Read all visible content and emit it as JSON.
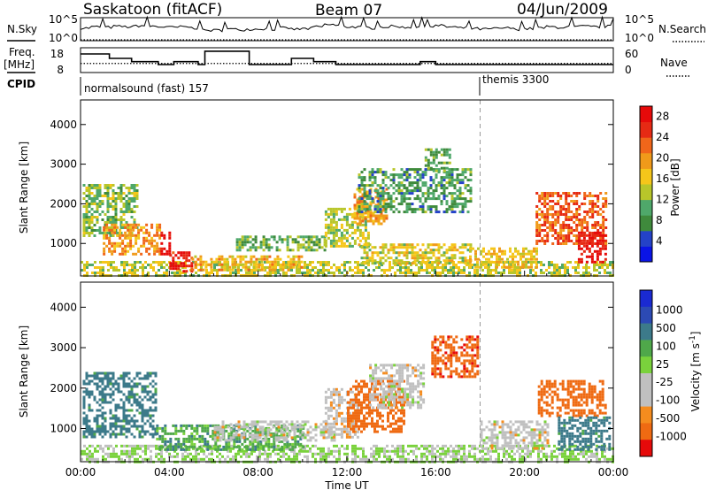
{
  "header": {
    "station": "Saskatoon (fitACF)",
    "beam": "Beam 07",
    "date": "04/Jun/2009"
  },
  "top_labels": {
    "nsky": "N.Sky",
    "freq_line1": "Freq.",
    "freq_line2": "[MHz]",
    "cpid": "CPID",
    "nsearch": "N.Search",
    "nave": "Nave",
    "nsky_ticks": [
      "10^5",
      "10^0"
    ],
    "nsearch_ticks": [
      "10^5",
      "10^0"
    ],
    "freq_ticks": [
      "18",
      "8"
    ],
    "nave_ticks": [
      "60",
      "0"
    ]
  },
  "cpid_labels": [
    {
      "start_hour": 0.0,
      "text": "normalsound (fast) 157"
    },
    {
      "start_hour": 18.0,
      "text": "themis 3300"
    }
  ],
  "colors": {
    "power": [
      "#0a14e6",
      "#2442c8",
      "#3f8a3c",
      "#4fa86a",
      "#b8c62a",
      "#f5c61a",
      "#f09a1a",
      "#f0661a",
      "#e62a14",
      "#e60a0a"
    ],
    "velocity_neg": [
      "#e60a0a",
      "#ef6a12",
      "#f58c1e"
    ],
    "velocity_zero": "#c0c0c0",
    "velocity_pos": [
      "#7ad23c",
      "#4fa84a",
      "#3c7a8a",
      "#2c4ab4",
      "#1a2ad2"
    ]
  },
  "chart_data": [
    {
      "type": "line",
      "name": "nsky_nsearch",
      "x_unit": "hour UT",
      "xlim": [
        0,
        24
      ],
      "series": [
        {
          "name": "N.Sky",
          "x": [
            0,
            0.5,
            1,
            1.5,
            2,
            2.5,
            3,
            3.5,
            4,
            4.5,
            5,
            5.5,
            6,
            6.5,
            7,
            7.5,
            8,
            8.5,
            9,
            9.5,
            10,
            10.5,
            11,
            11.5,
            12,
            12.5,
            13,
            13.5,
            14,
            14.5,
            15,
            15.5,
            16,
            16.5,
            17,
            17.5,
            18,
            18.5,
            19,
            19.5,
            20,
            20.5,
            21,
            21.5,
            22,
            22.5,
            23,
            23.5,
            24
          ],
          "values": [
            0.55,
            0.6,
            0.58,
            0.62,
            0.6,
            0.65,
            0.63,
            0.6,
            0.58,
            0.6,
            0.55,
            0.45,
            0.45,
            0.5,
            0.48,
            0.5,
            0.52,
            0.5,
            0.55,
            0.5,
            0.52,
            0.6,
            0.7,
            0.65,
            0.6,
            0.58,
            0.55,
            0.6,
            0.62,
            0.58,
            0.6,
            0.62,
            0.65,
            0.6,
            0.55,
            0.52,
            0.5,
            0.52,
            0.55,
            0.5,
            0.52,
            0.55,
            0.6,
            0.58,
            0.6,
            0.62,
            0.6,
            0.62,
            0.65
          ]
        },
        {
          "name": "N.Search",
          "x": [
            0,
            24
          ],
          "values": [
            0,
            0
          ]
        }
      ]
    },
    {
      "type": "line",
      "name": "frequency_nave",
      "x_unit": "hour UT",
      "xlim": [
        0,
        24
      ],
      "series": [
        {
          "name": "Freq. [MHz]",
          "step": true,
          "x": [
            0,
            1.3,
            2.3,
            3.5,
            4.2,
            5.3,
            5.6,
            6.4,
            7.6,
            9.5,
            10.5,
            11.5,
            12,
            15.3,
            16,
            18,
            19.5,
            24
          ],
          "values": [
            15.5,
            13.7,
            12.4,
            11.2,
            12.4,
            11.2,
            16.6,
            16.6,
            11.2,
            13.7,
            12.4,
            11.2,
            11.2,
            12.4,
            11.2,
            11.2,
            11.2,
            11.2
          ],
          "ylim": [
            8,
            18
          ]
        },
        {
          "name": "Nave",
          "x": [
            0,
            24
          ],
          "values": [
            22,
            22
          ],
          "ylim": [
            0,
            60
          ]
        }
      ]
    },
    {
      "type": "heatmap",
      "name": "power",
      "title": "Power [dB]",
      "x_unit": "hour UT",
      "xlim": [
        0,
        24
      ],
      "ylabel": "Slant Range [km]",
      "ylim": [
        180,
        4620
      ],
      "yticks": [
        1000,
        2000,
        3000,
        4000
      ],
      "colorbar_ticks": [
        4,
        8,
        12,
        16,
        20,
        24,
        28
      ],
      "color_range": [
        0,
        30
      ],
      "features": [
        {
          "t0": 0.0,
          "t1": 24.0,
          "r0": 180,
          "r1": 560,
          "level": 14
        },
        {
          "t0": 0.1,
          "t1": 2.6,
          "r0": 1200,
          "r1": 2500,
          "level": 12
        },
        {
          "t0": 1.0,
          "t1": 3.6,
          "r0": 700,
          "r1": 1500,
          "level": 20
        },
        {
          "t0": 3.6,
          "t1": 4.0,
          "r0": 700,
          "r1": 1300,
          "level": 29
        },
        {
          "t0": 4.0,
          "t1": 5.0,
          "r0": 300,
          "r1": 800,
          "level": 27
        },
        {
          "t0": 5.0,
          "t1": 10.0,
          "r0": 300,
          "r1": 700,
          "level": 18
        },
        {
          "t0": 7.0,
          "t1": 11.0,
          "r0": 800,
          "r1": 1200,
          "level": 11
        },
        {
          "t0": 11.0,
          "t1": 13.0,
          "r0": 900,
          "r1": 1900,
          "level": 14
        },
        {
          "t0": 12.3,
          "t1": 13.8,
          "r0": 1500,
          "r1": 2400,
          "level": 19
        },
        {
          "t0": 12.5,
          "t1": 17.6,
          "r0": 500,
          "r1": 1000,
          "level": 15
        },
        {
          "t0": 12.5,
          "t1": 17.6,
          "r0": 1800,
          "r1": 2900,
          "level": 9
        },
        {
          "t0": 15.5,
          "t1": 16.6,
          "r0": 2800,
          "r1": 3400,
          "level": 10
        },
        {
          "t0": 17.5,
          "t1": 20.5,
          "r0": 400,
          "r1": 900,
          "level": 17
        },
        {
          "t0": 20.5,
          "t1": 23.7,
          "r0": 1000,
          "r1": 2300,
          "level": 23
        },
        {
          "t0": 22.4,
          "t1": 23.7,
          "r0": 500,
          "r1": 1300,
          "level": 28
        }
      ]
    },
    {
      "type": "heatmap",
      "name": "velocity",
      "title": "Velocity [m s^-1]",
      "x_unit": "hour UT",
      "xlim": [
        0,
        24
      ],
      "xlabel": "Time UT",
      "ylabel": "Slant Range [km]",
      "ylim": [
        180,
        4620
      ],
      "yticks": [
        1000,
        2000,
        3000,
        4000
      ],
      "xticks": [
        "00:00",
        "04:00",
        "08:00",
        "12:00",
        "16:00",
        "20:00",
        "00:00"
      ],
      "colorbar_ticks": [
        1000,
        500,
        100,
        25,
        -25,
        -100,
        -500,
        -1000
      ],
      "features": [
        {
          "t0": 0.0,
          "t1": 24.0,
          "r0": 180,
          "r1": 600,
          "velocity": 30
        },
        {
          "t0": 0.1,
          "t1": 3.4,
          "r0": 800,
          "r1": 2400,
          "velocity": 150
        },
        {
          "t0": 3.4,
          "t1": 10.0,
          "r0": 500,
          "r1": 1100,
          "velocity": 80
        },
        {
          "t0": 6.0,
          "t1": 11.5,
          "r0": 700,
          "r1": 1200,
          "velocity": 0
        },
        {
          "t0": 11.0,
          "t1": 12.5,
          "r0": 800,
          "r1": 2000,
          "velocity": -10
        },
        {
          "t0": 12.0,
          "t1": 14.6,
          "r0": 900,
          "r1": 2200,
          "velocity": -300
        },
        {
          "t0": 13.0,
          "t1": 15.5,
          "r0": 1500,
          "r1": 2600,
          "velocity": 0
        },
        {
          "t0": 15.8,
          "t1": 17.9,
          "r0": 2300,
          "r1": 3300,
          "velocity": -400
        },
        {
          "t0": 18.0,
          "t1": 21.0,
          "r0": 500,
          "r1": 1200,
          "velocity": 0
        },
        {
          "t0": 20.6,
          "t1": 23.7,
          "r0": 1300,
          "r1": 2200,
          "velocity": -250
        },
        {
          "t0": 21.5,
          "t1": 23.8,
          "r0": 500,
          "r1": 1300,
          "velocity": 150
        }
      ]
    }
  ]
}
